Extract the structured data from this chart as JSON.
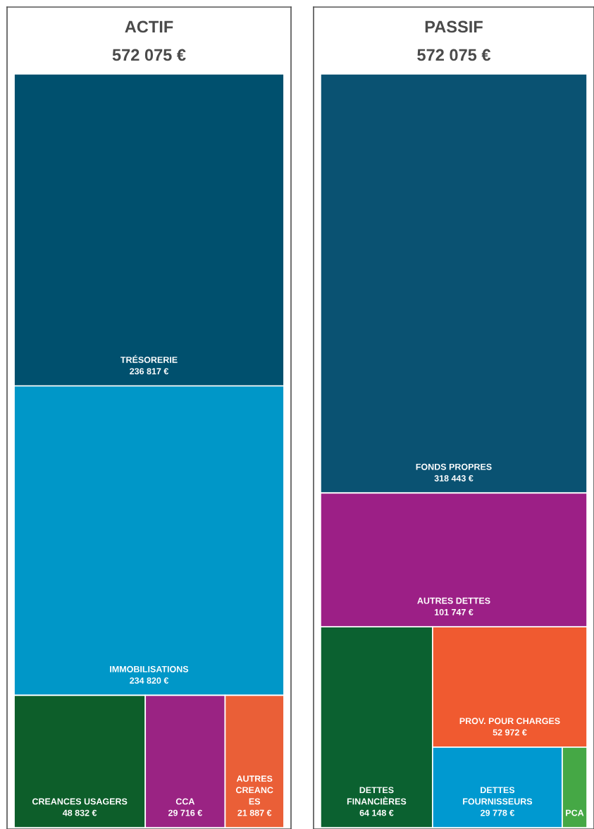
{
  "chart_data": [
    {
      "type": "other",
      "title": "ACTIF",
      "subtitle": "572 075 €",
      "categories": [
        "TRÉSORERIE",
        "IMMOBILISATIONS",
        "CREANCES USAGERS",
        "CCA",
        "AUTRES\nCREANC\nES"
      ],
      "values": [
        236817,
        234820,
        48832,
        29716,
        21887
      ],
      "value_labels": [
        "236 817 €",
        "234 820 €",
        "48 832 €",
        "29 716 €",
        "21 887 €"
      ],
      "colors": [
        "#00506e",
        "#0097c8",
        "#0d5e2a",
        "#9a2383",
        "#ea5f37"
      ]
    },
    {
      "type": "other",
      "title": "PASSIF",
      "subtitle": "572 075 €",
      "categories": [
        "FONDS PROPRES",
        "AUTRES DETTES",
        "DETTES\nFINANCIÈRES",
        "PROV. POUR CHARGES",
        "DETTES\nFOURNISSEURS",
        "PCA"
      ],
      "values": [
        318443,
        101747,
        64148,
        52972,
        29778,
        null
      ],
      "value_labels": [
        "318 443 €",
        "101 747 €",
        "64 148 €",
        "52 972 €",
        "29 778 €",
        null
      ],
      "colors": [
        "#0a5272",
        "#9c1f86",
        "#0b6130",
        "#f05a30",
        "#0099d0",
        "#45a845"
      ]
    }
  ]
}
